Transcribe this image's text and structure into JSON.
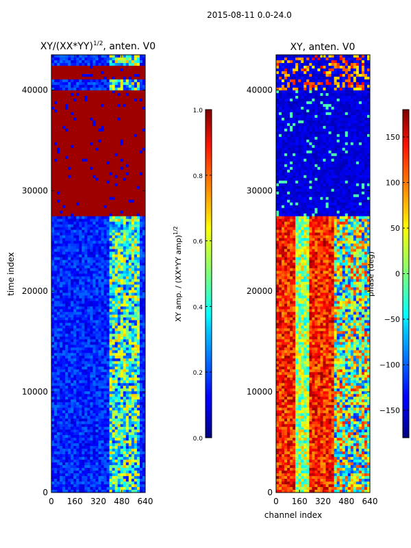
{
  "figure": {
    "suptitle": "2015-08-11 0.0-24.0",
    "xlabel": "channel index",
    "ylabel": "time index"
  },
  "chart_data": [
    {
      "type": "heatmap",
      "title_main": "XY/(XX*YY)",
      "title_exp": "1/2",
      "title_tail": ", anten. V0",
      "xlabel": "",
      "ylabel": "time index",
      "xlim": [
        0,
        640
      ],
      "ylim": [
        0,
        43500
      ],
      "xticks": [
        0,
        160,
        320,
        480,
        640
      ],
      "yticks": [
        0,
        10000,
        20000,
        30000,
        40000
      ],
      "colorbar": {
        "label_main": "XY amp. / (XX*YY amp)",
        "label_exp": "1/2",
        "range": [
          0.0,
          1.0
        ],
        "ticks": [
          0.0,
          0.2,
          0.4,
          0.6,
          0.8,
          1.0
        ],
        "tick_labels": [
          "0.0",
          "0.2",
          "0.4",
          "0.6",
          "0.8",
          "1.0"
        ]
      },
      "saturated_time_bands": [
        [
          27500,
          40000
        ],
        [
          41000,
          42500
        ]
      ],
      "high_value_channel_range": [
        400,
        600
      ]
    },
    {
      "type": "heatmap",
      "title": "XY, anten. V0",
      "xlabel": "channel index",
      "ylabel": "",
      "xlim": [
        0,
        640
      ],
      "ylim": [
        0,
        43500
      ],
      "xticks": [
        0,
        160,
        320,
        480,
        640
      ],
      "yticks": [
        0,
        10000,
        20000,
        30000,
        40000
      ],
      "colorbar": {
        "label": "phase (deg)",
        "range": [
          -180,
          180
        ],
        "ticks": [
          -150,
          -100,
          -50,
          0,
          50,
          100,
          150
        ],
        "tick_labels": [
          "−150",
          "−100",
          "−50",
          "0",
          "50",
          "100",
          "150"
        ]
      },
      "low_phase_time_band": [
        27500,
        40000
      ],
      "high_phase_channel_ranges": [
        [
          0,
          140
        ],
        [
          220,
          400
        ]
      ]
    }
  ]
}
